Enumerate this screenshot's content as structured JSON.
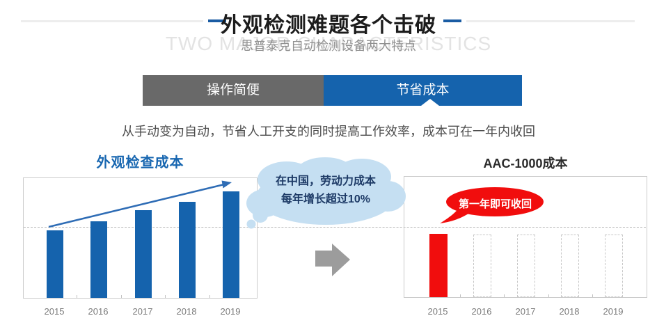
{
  "header": {
    "title": "外观检测难题各个击破",
    "watermark": "TWO MAJOR CHARACTERISTICS",
    "subtitle": "思普泰克自动检测设备两大特点"
  },
  "tabs": [
    {
      "label": "操作简便",
      "active": false
    },
    {
      "label": "节省成本",
      "active": true
    }
  ],
  "description": "从手动变为自动，节省人工开支的同时提高工作效率，成本可在一年内收回",
  "annotations": {
    "labor_cost_cloud": {
      "lines": [
        "在中国，劳动力成本",
        "每年增长超过10%"
      ]
    },
    "payback_bubble": {
      "text": "第一年即可收回"
    },
    "trend_arrow": "rising cost trend from 2015 to 2019"
  },
  "chart_data": [
    {
      "type": "bar",
      "title": "外观检查成本",
      "categories": [
        "2015",
        "2016",
        "2017",
        "2018",
        "2019"
      ],
      "values": [
        100,
        114,
        130,
        143,
        158
      ],
      "ylim": [
        0,
        178
      ],
      "ylabel": "",
      "xlabel": "",
      "bar_color": "#1563ad",
      "grid": "single dashed horizontal reference line",
      "reference_line_value": 104,
      "legend": "none",
      "note": "manual visual-inspection cost rises every year (>10%/yr)"
    },
    {
      "type": "bar",
      "title": "AAC-1000成本",
      "categories": [
        "2015",
        "2016",
        "2017",
        "2018",
        "2019"
      ],
      "values": [
        95,
        94,
        94,
        94,
        94
      ],
      "bar_styles": [
        "solid",
        "dashed",
        "dashed",
        "dashed",
        "dashed"
      ],
      "ylim": [
        0,
        180
      ],
      "ylabel": "",
      "xlabel": "",
      "bar_color": "#f10d0d",
      "grid": "single dashed horizontal reference line",
      "reference_line_value": 104,
      "legend": "none",
      "note": "only year-1 cost is real (red); 2016-2019 are empty dashed outlines = cost recovered in first year"
    }
  ],
  "colors": {
    "accent_blue": "#1563ad",
    "title_dash_blue": "#1a5ca3",
    "tab_gray": "#696969",
    "alert_red": "#f10d0d",
    "cloud_fill": "#c5dff2",
    "cloud_text": "#1d3a66",
    "transition_arrow_gray": "#9c9c9c",
    "chart_border": "#cbcbcb",
    "dashed_line": "#b9b9b9",
    "axis_label_gray": "#7a7a7a"
  }
}
